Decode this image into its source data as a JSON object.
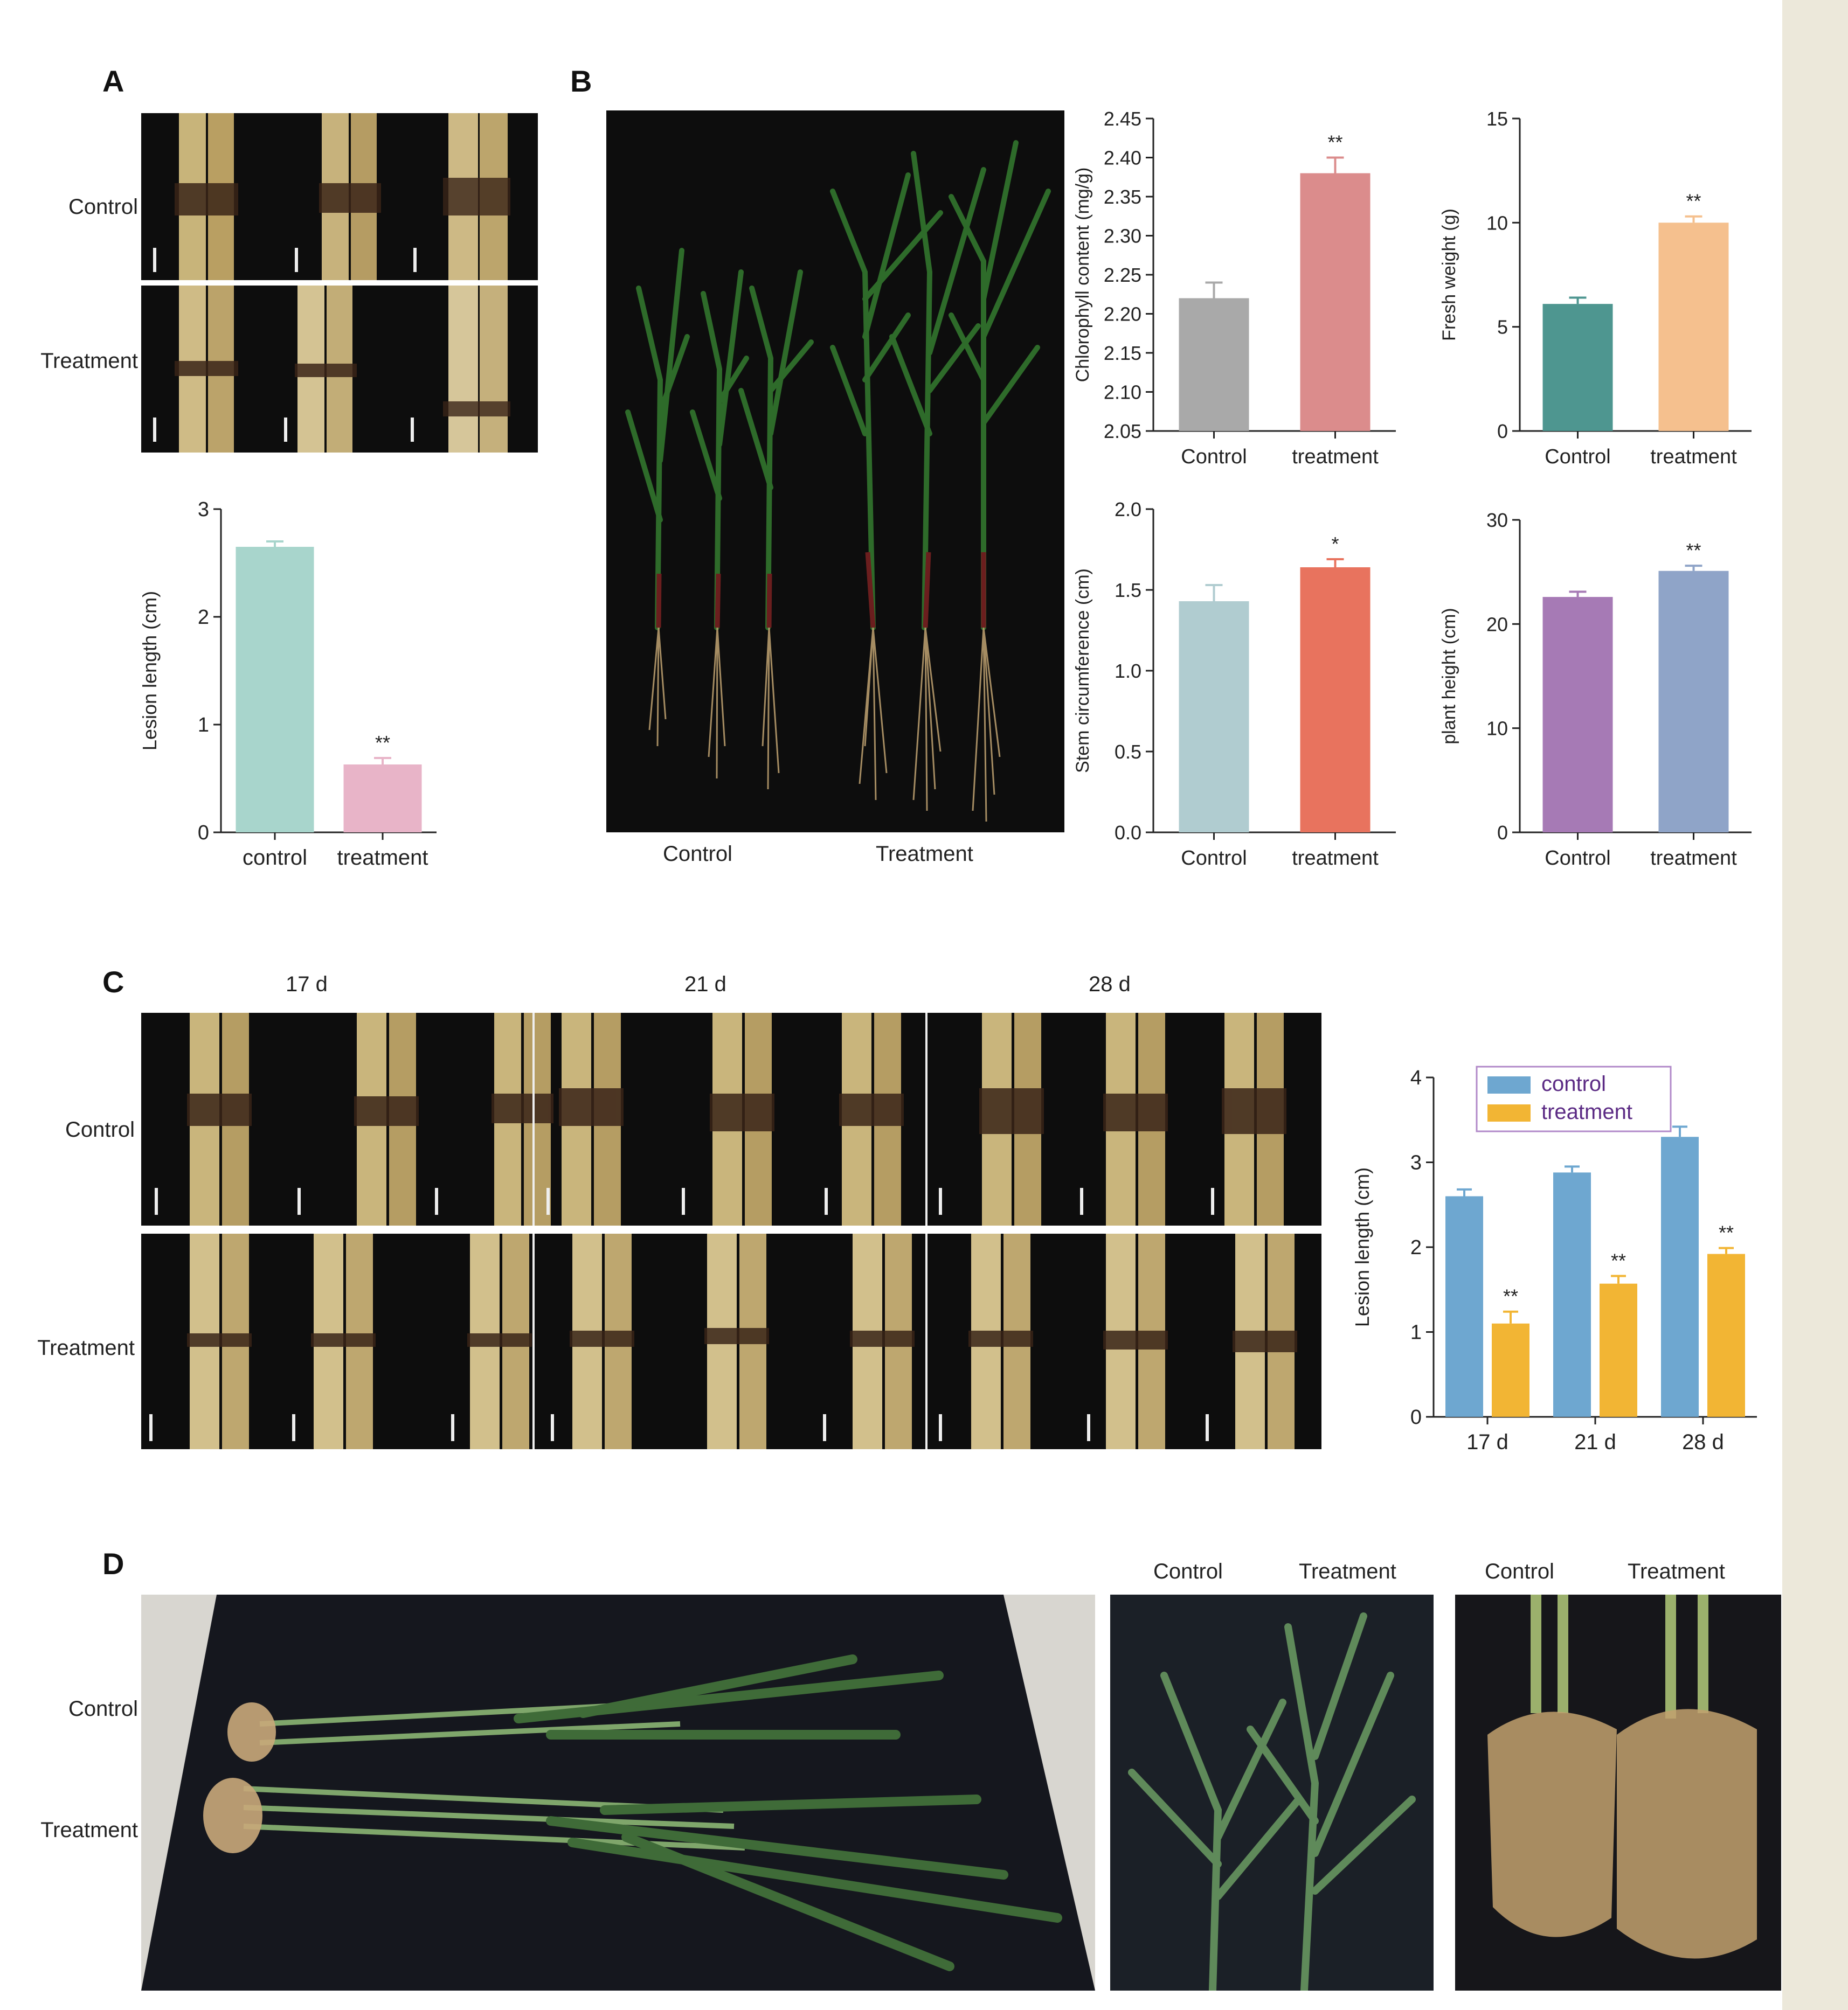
{
  "panels": {
    "a": "A",
    "b": "B",
    "c": "C",
    "d": "D"
  },
  "panel_a": {
    "row_control": "Control",
    "row_treatment": "Treatment"
  },
  "panel_b": {
    "photo_control": "Control",
    "photo_treatment": "Treatment"
  },
  "panel_c": {
    "row_control": "Control",
    "row_treatment": "Treatment",
    "timepoints": [
      "17 d",
      "21 d",
      "28 d"
    ]
  },
  "panel_d": {
    "row_control": "Control",
    "row_treatment": "Treatment",
    "mid_control": "Control",
    "mid_treatment": "Treatment",
    "right_control": "Control",
    "right_treatment": "Treatment"
  },
  "colors": {
    "mint": "#a8d5cc",
    "pink": "#e8b4c8",
    "gray": "#a9a9a9",
    "rose": "#db8c8c",
    "teal": "#4e9690",
    "peach": "#f5c08e",
    "lightblue": "#b0ccd0",
    "coral": "#e8735e",
    "purple": "#a67ab5",
    "periwinkle": "#8fa4c8",
    "steelblue": "#6ea7d0",
    "gold": "#f2b534"
  },
  "chart_data": [
    {
      "id": "a",
      "type": "bar",
      "categories": [
        "control",
        "treatment"
      ],
      "values": [
        2.65,
        0.63
      ],
      "errors": [
        0.05,
        0.06
      ],
      "annotations": [
        "",
        "**"
      ],
      "colors": [
        "#a8d5cc",
        "#e8b4c8"
      ],
      "ylabel": "Lesion length (cm)",
      "xlabel": "",
      "ylim": [
        0,
        3
      ],
      "yticks": [
        "0",
        "1",
        "2",
        "3"
      ]
    },
    {
      "id": "b1",
      "type": "bar",
      "categories": [
        "Control",
        "treatment"
      ],
      "values": [
        2.22,
        2.38
      ],
      "errors": [
        0.02,
        0.02
      ],
      "annotations": [
        "",
        "**"
      ],
      "colors": [
        "#a9a9a9",
        "#db8c8c"
      ],
      "ylabel": "Chlorophyll content (mg/g)",
      "xlabel": "",
      "ylim": [
        2.05,
        2.45
      ],
      "yticks": [
        "2.05",
        "2.10",
        "2.15",
        "2.20",
        "2.25",
        "2.30",
        "2.35",
        "2.40",
        "2.45"
      ]
    },
    {
      "id": "b2",
      "type": "bar",
      "categories": [
        "Control",
        "treatment"
      ],
      "values": [
        6.1,
        10.0
      ],
      "errors": [
        0.3,
        0.3
      ],
      "annotations": [
        "",
        "**"
      ],
      "colors": [
        "#4e9690",
        "#f5c08e"
      ],
      "ylabel": "Fresh weight (g)",
      "xlabel": "",
      "ylim": [
        0,
        15
      ],
      "yticks": [
        "0",
        "5",
        "10",
        "15"
      ]
    },
    {
      "id": "b3",
      "type": "bar",
      "categories": [
        "Control",
        "treatment"
      ],
      "values": [
        1.43,
        1.64
      ],
      "errors": [
        0.1,
        0.05
      ],
      "annotations": [
        "",
        "*"
      ],
      "colors": [
        "#b0ccd0",
        "#e8735e"
      ],
      "ylabel": "Stem circumference (cm)",
      "xlabel": "",
      "ylim": [
        0,
        2.0
      ],
      "yticks": [
        "0.0",
        "0.5",
        "1.0",
        "1.5",
        "2.0"
      ]
    },
    {
      "id": "b4",
      "type": "bar",
      "categories": [
        "Control",
        "treatment"
      ],
      "values": [
        22.6,
        25.1
      ],
      "errors": [
        0.5,
        0.5
      ],
      "annotations": [
        "",
        "**"
      ],
      "colors": [
        "#a67ab5",
        "#8fa4c8"
      ],
      "ylabel": "plant height (cm)",
      "xlabel": "",
      "ylim": [
        0,
        30
      ],
      "yticks": [
        "0",
        "10",
        "20",
        "30"
      ]
    },
    {
      "id": "c",
      "type": "bar",
      "categories": [
        "17 d",
        "21 d",
        "28 d"
      ],
      "series": [
        {
          "name": "control",
          "values": [
            2.6,
            2.88,
            3.3
          ],
          "errors": [
            0.08,
            0.07,
            0.12
          ],
          "annotations": [
            "",
            "",
            ""
          ],
          "color": "#6ea7d0"
        },
        {
          "name": "treatment",
          "values": [
            1.1,
            1.57,
            1.92
          ],
          "errors": [
            0.14,
            0.09,
            0.07
          ],
          "annotations": [
            "**",
            "**",
            "**"
          ],
          "color": "#f2b534"
        }
      ],
      "ylabel": "Lesion length (cm)",
      "xlabel": "",
      "ylim": [
        0,
        4
      ],
      "yticks": [
        "0",
        "1",
        "2",
        "3",
        "4"
      ],
      "legend": "top"
    }
  ]
}
